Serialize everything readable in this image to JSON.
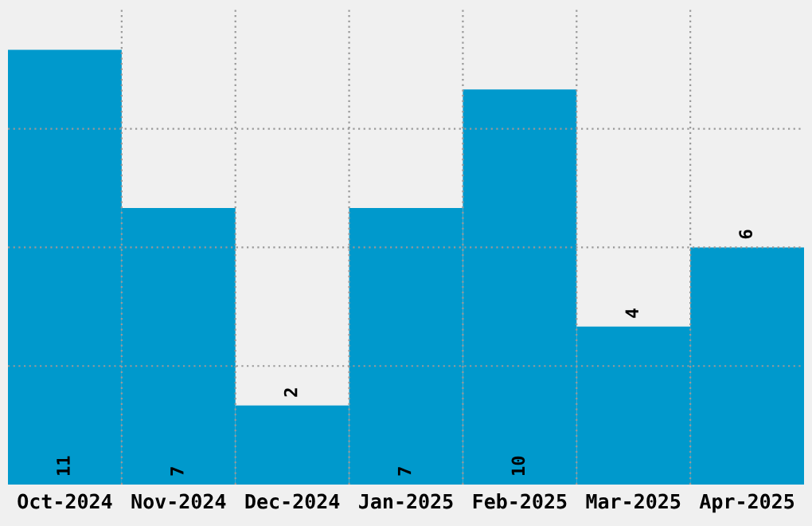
{
  "chart_data": {
    "type": "bar",
    "categories": [
      "Oct-2024",
      "Nov-2024",
      "Dec-2024",
      "Jan-2025",
      "Feb-2025",
      "Mar-2025",
      "Apr-2025"
    ],
    "values": [
      11,
      7,
      2,
      7,
      10,
      4,
      6
    ],
    "color": "#0099cc",
    "ylim": [
      0,
      12.1
    ],
    "yticks": [
      {
        "value": 3,
        "label": null
      },
      {
        "value": 6,
        "label": null
      },
      {
        "value": 9,
        "label": null
      }
    ],
    "tick_labels": "x",
    "grid": true,
    "data_labels": true
  }
}
